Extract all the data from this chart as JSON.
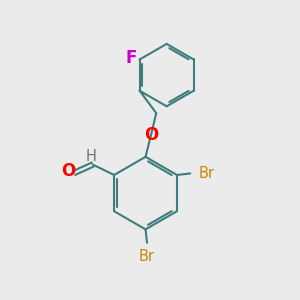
{
  "bg_color": "#ebebeb",
  "bond_color": "#3d7d7d",
  "bond_width": 1.5,
  "O_color": "#ff0000",
  "F_color": "#cc00cc",
  "Br_color": "#cc8800",
  "H_color": "#707070",
  "font_size": 10.5,
  "fig_w": 3.0,
  "fig_h": 3.0,
  "dpi": 100,
  "xlim": [
    0,
    10
  ],
  "ylim": [
    0,
    10
  ]
}
